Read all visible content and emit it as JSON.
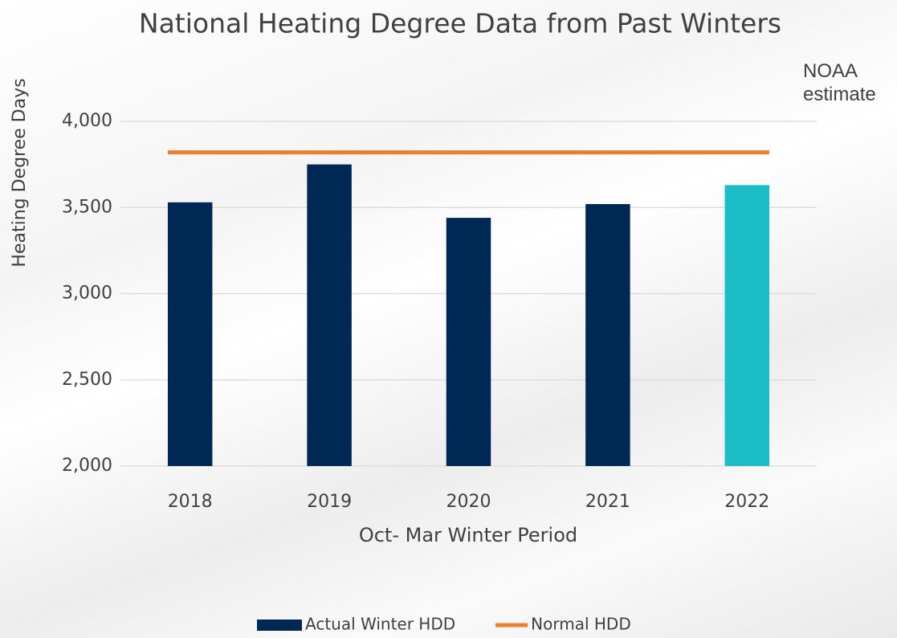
{
  "chart_data": {
    "type": "bar",
    "title": "National Heating Degree Data from Past Winters",
    "y_label": "Heating Degree Days",
    "x_label": "Oct- Mar Winter Period",
    "annotation": "NOAA estimate",
    "categories": [
      "2018",
      "2019",
      "2020",
      "2021",
      "2022"
    ],
    "series": [
      {
        "name": "Actual Winter HDD",
        "type": "bar",
        "color": "#002855",
        "colors": [
          "#002855",
          "#002855",
          "#002855",
          "#002855",
          "#1bbec4"
        ],
        "values": [
          3530,
          3750,
          3440,
          3520,
          3630
        ]
      },
      {
        "name": "Normal HDD",
        "type": "line",
        "color": "#ed7d31",
        "values": [
          3820,
          3820,
          3820,
          3820,
          3820
        ]
      }
    ],
    "ylim": [
      2000,
      4000
    ],
    "yticks": [
      {
        "value": 2000,
        "label": "2,000"
      },
      {
        "value": 2500,
        "label": "2,500"
      },
      {
        "value": 3000,
        "label": "3,000"
      },
      {
        "value": 3500,
        "label": "3,500"
      },
      {
        "value": 4000,
        "label": "4,000"
      }
    ],
    "grid": true,
    "legend": "bottom"
  }
}
